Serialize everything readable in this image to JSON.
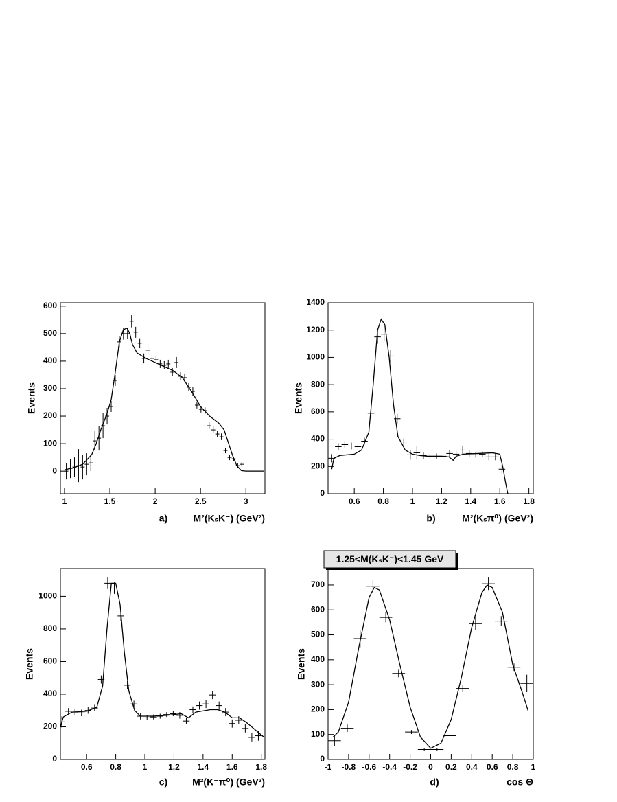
{
  "chart_data": [
    {
      "type": "errorbar",
      "panel_label": "a)",
      "xlabel": "M²(KₛK⁻) (GeV²)",
      "ylabel": "Events",
      "color": "#000000",
      "xlim": [
        0.955,
        3.21
      ],
      "ylim": [
        -82,
        612
      ],
      "xticks": [
        1,
        1.5,
        2,
        2.5,
        3
      ],
      "yticks": [
        0,
        100,
        200,
        300,
        400,
        500,
        600
      ],
      "points": {
        "x": [
          1.02,
          1.065,
          1.11,
          1.155,
          1.2,
          1.245,
          1.29,
          1.335,
          1.38,
          1.425,
          1.47,
          1.515,
          1.56,
          1.605,
          1.65,
          1.695,
          1.74,
          1.785,
          1.83,
          1.875,
          1.92,
          1.965,
          2.01,
          2.055,
          2.1,
          2.145,
          2.19,
          2.235,
          2.28,
          2.325,
          2.37,
          2.415,
          2.46,
          2.505,
          2.55,
          2.595,
          2.64,
          2.685,
          2.73,
          2.775,
          2.82,
          2.865,
          2.91,
          2.955
        ],
        "y": [
          0,
          10,
          15,
          20,
          15,
          25,
          30,
          110,
          120,
          165,
          200,
          235,
          330,
          470,
          500,
          500,
          545,
          505,
          465,
          410,
          440,
          410,
          405,
          390,
          385,
          390,
          360,
          395,
          345,
          340,
          305,
          290,
          240,
          225,
          220,
          165,
          150,
          135,
          125,
          75,
          50,
          45,
          20,
          25
        ],
        "yerr": [
          30,
          35,
          35,
          60,
          45,
          40,
          30,
          35,
          45,
          45,
          30,
          20,
          20,
          22,
          22,
          20,
          22,
          20,
          18,
          18,
          18,
          18,
          15,
          15,
          15,
          15,
          15,
          20,
          15,
          15,
          15,
          15,
          12,
          12,
          12,
          12,
          12,
          12,
          12,
          10,
          10,
          8,
          8,
          8
        ],
        "xerr": 0.0225
      },
      "fit": {
        "x": [
          1.0,
          1.1,
          1.2,
          1.3,
          1.35,
          1.4,
          1.47,
          1.515,
          1.56,
          1.605,
          1.65,
          1.69,
          1.72,
          1.75,
          1.8,
          1.9,
          2.0,
          2.1,
          2.2,
          2.3,
          2.4,
          2.5,
          2.6,
          2.7,
          2.76,
          2.8,
          2.85,
          2.9,
          2.95,
          3.0,
          3.2
        ],
        "y": [
          5,
          12,
          25,
          60,
          100,
          150,
          210,
          260,
          360,
          470,
          515,
          520,
          500,
          460,
          430,
          410,
          395,
          380,
          365,
          340,
          290,
          235,
          200,
          175,
          150,
          110,
          60,
          20,
          2,
          0,
          0
        ]
      }
    },
    {
      "type": "errorbar",
      "panel_label": "b)",
      "xlabel": "M²(Kₛπ⁰) (GeV²)",
      "ylabel": "Events",
      "color": "#000000",
      "xlim": [
        0.42,
        1.83
      ],
      "ylim": [
        0,
        1400
      ],
      "xticks": [
        0.6,
        0.8,
        1,
        1.2,
        1.4,
        1.6,
        1.8
      ],
      "yticks": [
        0,
        200,
        400,
        600,
        800,
        1000,
        1200,
        1400
      ],
      "points": {
        "x": [
          0.445,
          0.49,
          0.535,
          0.58,
          0.625,
          0.67,
          0.715,
          0.76,
          0.805,
          0.85,
          0.895,
          0.94,
          0.985,
          1.03,
          1.075,
          1.12,
          1.165,
          1.21,
          1.255,
          1.3,
          1.345,
          1.39,
          1.435,
          1.48,
          1.525,
          1.57,
          1.615
        ],
        "y": [
          260,
          345,
          360,
          350,
          345,
          385,
          590,
          1150,
          1170,
          1010,
          550,
          380,
          285,
          300,
          280,
          275,
          275,
          275,
          295,
          290,
          320,
          295,
          285,
          290,
          270,
          270,
          180
        ],
        "yerr": [
          30,
          25,
          25,
          25,
          25,
          25,
          30,
          50,
          50,
          45,
          35,
          25,
          35,
          50,
          25,
          20,
          20,
          20,
          25,
          25,
          30,
          25,
          20,
          20,
          25,
          25,
          35
        ],
        "xerr": 0.0225
      },
      "fit": {
        "x": [
          0.445,
          0.46,
          0.5,
          0.6,
          0.65,
          0.7,
          0.73,
          0.76,
          0.785,
          0.81,
          0.84,
          0.87,
          0.9,
          0.95,
          1.0,
          1.05,
          1.1,
          1.2,
          1.25,
          1.28,
          1.3,
          1.35,
          1.45,
          1.55,
          1.6,
          1.62,
          1.64,
          1.655
        ],
        "y": [
          180,
          260,
          280,
          290,
          320,
          450,
          800,
          1200,
          1280,
          1240,
          1000,
          650,
          420,
          320,
          290,
          280,
          275,
          275,
          270,
          245,
          275,
          290,
          295,
          300,
          290,
          200,
          80,
          0
        ]
      }
    },
    {
      "type": "errorbar",
      "panel_label": "c)",
      "xlabel": "M²(K⁻π⁰) (GeV²)",
      "ylabel": "Events",
      "color": "#000000",
      "xlim": [
        0.42,
        1.825
      ],
      "ylim": [
        0,
        1170
      ],
      "xticks": [
        0.6,
        0.8,
        1,
        1.2,
        1.4,
        1.6,
        1.8
      ],
      "yticks": [
        0,
        200,
        400,
        600,
        800,
        1000
      ],
      "points": {
        "x": [
          0.43,
          0.475,
          0.52,
          0.565,
          0.61,
          0.655,
          0.7,
          0.745,
          0.79,
          0.835,
          0.88,
          0.925,
          0.97,
          1.015,
          1.06,
          1.105,
          1.15,
          1.195,
          1.24,
          1.285,
          1.33,
          1.375,
          1.42,
          1.465,
          1.51,
          1.555,
          1.6,
          1.645,
          1.69,
          1.735,
          1.78
        ],
        "y": [
          230,
          295,
          290,
          285,
          300,
          315,
          490,
          1080,
          1050,
          880,
          455,
          340,
          265,
          255,
          260,
          265,
          275,
          280,
          270,
          235,
          305,
          330,
          340,
          395,
          330,
          290,
          220,
          240,
          190,
          135,
          145
        ],
        "yerr": [
          35,
          20,
          20,
          20,
          20,
          20,
          25,
          35,
          35,
          30,
          25,
          20,
          20,
          15,
          15,
          15,
          15,
          15,
          20,
          20,
          20,
          25,
          25,
          25,
          25,
          25,
          25,
          25,
          25,
          25,
          30
        ],
        "xerr": 0.0225
      },
      "fit": {
        "x": [
          0.42,
          0.44,
          0.5,
          0.6,
          0.67,
          0.71,
          0.74,
          0.77,
          0.8,
          0.83,
          0.86,
          0.89,
          0.93,
          0.97,
          1.05,
          1.15,
          1.25,
          1.3,
          1.35,
          1.45,
          1.5,
          1.55,
          1.6,
          1.65,
          1.7,
          1.78,
          1.82
        ],
        "y": [
          200,
          260,
          290,
          295,
          320,
          450,
          800,
          1080,
          1080,
          950,
          650,
          420,
          300,
          265,
          265,
          270,
          280,
          255,
          290,
          305,
          305,
          290,
          255,
          255,
          225,
          165,
          135
        ]
      }
    },
    {
      "type": "errorbar",
      "panel_label": "d)",
      "xlabel": "cos  Θ",
      "ylabel": "Events",
      "color": "#000000",
      "annotation": "1.25<M(KₛK⁻)<1.45 GeV",
      "xlim": [
        -1,
        1
      ],
      "ylim": [
        0,
        766
      ],
      "xticks": [
        -1,
        -0.8,
        -0.6,
        -0.4,
        -0.2,
        0,
        0.2,
        0.4,
        0.6,
        0.8,
        1
      ],
      "yticks": [
        0,
        100,
        200,
        300,
        400,
        500,
        600,
        700
      ],
      "points": {
        "x": [
          -0.9375,
          -0.8125,
          -0.6875,
          -0.5625,
          -0.4375,
          -0.3125,
          -0.1875,
          -0.0625,
          0.0625,
          0.1875,
          0.3125,
          0.4375,
          0.5625,
          0.6875,
          0.8125,
          0.9375
        ],
        "y": [
          75,
          125,
          485,
          695,
          570,
          345,
          110,
          40,
          40,
          95,
          285,
          545,
          705,
          555,
          370,
          305
        ],
        "yerr": [
          20,
          15,
          35,
          25,
          20,
          15,
          8,
          5,
          5,
          8,
          15,
          25,
          25,
          20,
          15,
          35
        ],
        "xerr": 0.0625
      },
      "fit": {
        "x": [
          -0.95,
          -0.9,
          -0.8,
          -0.7,
          -0.6,
          -0.55,
          -0.5,
          -0.4,
          -0.3,
          -0.2,
          -0.1,
          0,
          0.1,
          0.2,
          0.3,
          0.4,
          0.5,
          0.55,
          0.6,
          0.7,
          0.8,
          0.9,
          0.95
        ],
        "y": [
          90,
          110,
          230,
          450,
          650,
          690,
          680,
          560,
          380,
          210,
          90,
          45,
          65,
          160,
          330,
          530,
          670,
          700,
          690,
          590,
          380,
          260,
          195
        ]
      }
    }
  ]
}
